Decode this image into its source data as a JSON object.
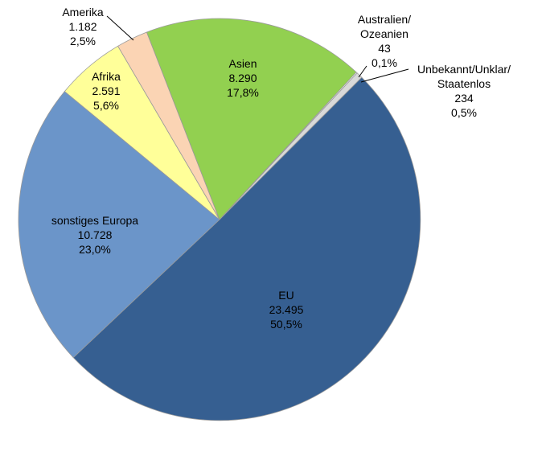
{
  "chart_data": {
    "type": "pie",
    "title": "",
    "slices": [
      {
        "name": "EU",
        "value_label": "23.495",
        "percent_label": "50,5%",
        "value": 23495,
        "percent": 50.5,
        "color": "#365f91"
      },
      {
        "name": "sonstiges Europa",
        "value_label": "10.728",
        "percent_label": "23,0%",
        "value": 10728,
        "percent": 23.0,
        "color": "#6b95c9"
      },
      {
        "name": "Afrika",
        "value_label": "2.591",
        "percent_label": "5,6%",
        "value": 2591,
        "percent": 5.6,
        "color": "#ffff99"
      },
      {
        "name": "Amerika",
        "value_label": "1.182",
        "percent_label": "2,5%",
        "value": 1182,
        "percent": 2.5,
        "color": "#fbd4b4"
      },
      {
        "name": "Asien",
        "value_label": "8.290",
        "percent_label": "17,8%",
        "value": 8290,
        "percent": 17.8,
        "color": "#92d050"
      },
      {
        "name": "Australien/ Ozeanien",
        "value_label": "43",
        "percent_label": "0,1%",
        "value": 43,
        "percent": 0.1,
        "color": "#ffffff"
      },
      {
        "name": "Unbekannt/Unklar/ Staatenlos",
        "value_label": "234",
        "percent_label": "0,5%",
        "value": 234,
        "percent": 0.5,
        "color": "#d9d9d9"
      }
    ]
  }
}
